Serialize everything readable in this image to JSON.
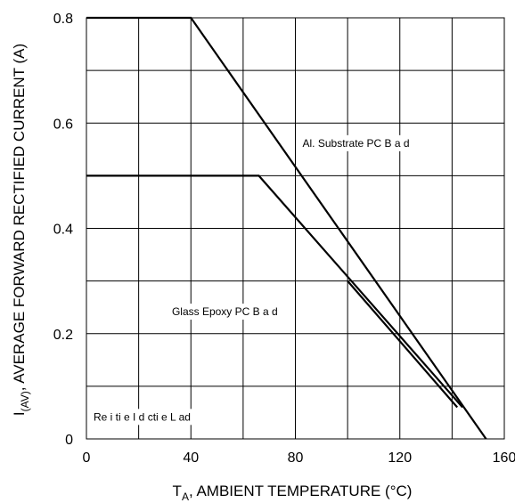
{
  "chart_data": {
    "type": "line",
    "xlabel": {
      "prefix": "T",
      "sub": "A",
      "suffix": ", AMBIENT TEMPERATURE (°C)"
    },
    "ylabel": {
      "prefix": "I",
      "sub": "(AV)",
      "suffix": ", AVERAGE FORWARD RECTIFIED CURRENT (A)"
    },
    "xlim": [
      0,
      160
    ],
    "ylim": [
      0,
      0.8
    ],
    "x_ticks": [
      "0",
      "40",
      "80",
      "120",
      "160"
    ],
    "x_tick_values": [
      0,
      40,
      80,
      120,
      160
    ],
    "y_ticks": [
      "0",
      "0.2",
      "0.4",
      "0.6",
      "0.8"
    ],
    "y_tick_values": [
      0,
      0.2,
      0.4,
      0.6,
      0.8
    ],
    "grid": true,
    "series": [
      {
        "points": [
          [
            0,
            0.8
          ],
          [
            40,
            0.8
          ],
          [
            153,
            0.0
          ]
        ]
      },
      {
        "points": [
          [
            0,
            0.5
          ],
          [
            66,
            0.5
          ],
          [
            144,
            0.06
          ]
        ]
      },
      {
        "points": [
          [
            100,
            0.3
          ],
          [
            142,
            0.06
          ]
        ]
      }
    ],
    "annotations": [
      {
        "text": "Al. Substrate PC B  a d",
        "x": 80,
        "y": 0.555
      },
      {
        "text": "Glass Epoxy PC B  a d",
        "x": 30,
        "y": 0.235
      },
      {
        "text": "Re i ti e    I d cti e L ad",
        "x": 0,
        "y": 0.035
      }
    ]
  }
}
